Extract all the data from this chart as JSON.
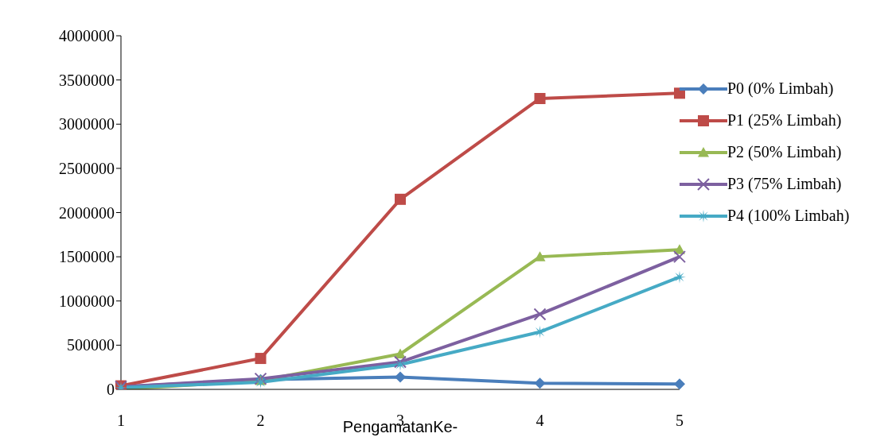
{
  "chart_data": {
    "type": "line",
    "xlabel": "PengamatanKe-",
    "categories": [
      "1",
      "2",
      "3",
      "4",
      "5"
    ],
    "ylim": [
      0,
      4000000
    ],
    "yticks": [
      0,
      500000,
      1000000,
      1500000,
      2000000,
      2500000,
      3000000,
      3500000,
      4000000
    ],
    "grid": false,
    "legend": "right",
    "line_style": "solid",
    "series": [
      {
        "name": "P0 (0% Limbah)",
        "color": "#4a7ebb",
        "marker": "diamond",
        "values": [
          30000,
          110000,
          140000,
          70000,
          60000
        ]
      },
      {
        "name": "P1 (25% Limbah)",
        "color": "#be4b48",
        "marker": "square",
        "values": [
          40000,
          350000,
          2150000,
          3290000,
          3350000
        ]
      },
      {
        "name": "P2 (50% Limbah)",
        "color": "#98b954",
        "marker": "triangle",
        "values": [
          0,
          100000,
          400000,
          1500000,
          1580000
        ]
      },
      {
        "name": "P3 (75% Limbah)",
        "color": "#7d60a0",
        "marker": "cross",
        "values": [
          30000,
          120000,
          310000,
          850000,
          1500000
        ]
      },
      {
        "name": "P4 (100% Limbah)",
        "color": "#46aac5",
        "marker": "star",
        "values": [
          20000,
          80000,
          280000,
          650000,
          1270000
        ]
      }
    ]
  }
}
